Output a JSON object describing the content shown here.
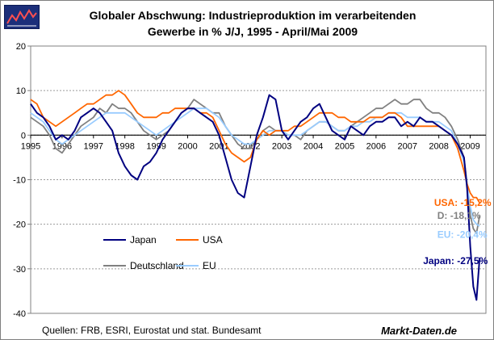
{
  "chart_data": {
    "type": "line",
    "title_line1": "Globaler Abschwung: Industrieproduktion im verarbeitenden",
    "title_line2": "Gewerbe in % J/J, 1995 -  April/Mai 2009",
    "xlabel": "",
    "ylabel": "",
    "x_ticks": [
      "1995",
      "1996",
      "1997",
      "1998",
      "1999",
      "2000",
      "2001",
      "2002",
      "2003",
      "2004",
      "2005",
      "2006",
      "2007",
      "2008",
      "2009"
    ],
    "xlim": [
      1995.0,
      2009.5
    ],
    "ylim": [
      -40,
      20
    ],
    "y_ticks": [
      -40,
      -30,
      -20,
      -10,
      0,
      10,
      20
    ],
    "grid": true,
    "legend_position": "center-left",
    "series": [
      {
        "name": "Japan",
        "color": "#000080",
        "x": [
          1995.0,
          1995.2,
          1995.4,
          1995.6,
          1995.8,
          1996.0,
          1996.2,
          1996.4,
          1996.6,
          1996.8,
          1997.0,
          1997.2,
          1997.4,
          1997.6,
          1997.8,
          1998.0,
          1998.2,
          1998.4,
          1998.6,
          1998.8,
          1999.0,
          1999.2,
          1999.4,
          1999.6,
          1999.8,
          2000.0,
          2000.2,
          2000.4,
          2000.6,
          2000.8,
          2001.0,
          2001.2,
          2001.4,
          2001.6,
          2001.8,
          2002.0,
          2002.2,
          2002.4,
          2002.6,
          2002.8,
          2003.0,
          2003.2,
          2003.4,
          2003.6,
          2003.8,
          2004.0,
          2004.2,
          2004.4,
          2004.6,
          2004.8,
          2005.0,
          2005.2,
          2005.4,
          2005.6,
          2005.8,
          2006.0,
          2006.2,
          2006.4,
          2006.6,
          2006.8,
          2007.0,
          2007.2,
          2007.4,
          2007.6,
          2007.8,
          2008.0,
          2008.2,
          2008.4,
          2008.6,
          2008.8,
          2008.9,
          2009.0,
          2009.1,
          2009.2,
          2009.3
        ],
        "y": [
          7,
          5,
          4,
          2,
          -1,
          0,
          -1,
          1,
          4,
          5,
          6,
          5,
          3,
          1,
          -4,
          -7,
          -9,
          -10,
          -7,
          -6,
          -4,
          -1,
          1,
          3,
          5,
          6,
          6,
          5,
          4,
          3,
          0,
          -5,
          -10,
          -13,
          -14,
          -7,
          0,
          4,
          9,
          8,
          1,
          -1,
          1,
          3,
          4,
          6,
          7,
          4,
          1,
          0,
          -1,
          2,
          1,
          0,
          2,
          3,
          3,
          4,
          4,
          2,
          3,
          2,
          4,
          3,
          3,
          2,
          1,
          0,
          -2,
          -5,
          -12,
          -25,
          -34,
          -37,
          -27.5
        ]
      },
      {
        "name": "USA",
        "color": "#ff6600",
        "x": [
          1995.0,
          1995.2,
          1995.4,
          1995.6,
          1995.8,
          1996.0,
          1996.2,
          1996.4,
          1996.6,
          1996.8,
          1997.0,
          1997.2,
          1997.4,
          1997.6,
          1997.8,
          1998.0,
          1998.2,
          1998.4,
          1998.6,
          1998.8,
          1999.0,
          1999.2,
          1999.4,
          1999.6,
          1999.8,
          2000.0,
          2000.2,
          2000.4,
          2000.6,
          2000.8,
          2001.0,
          2001.2,
          2001.4,
          2001.6,
          2001.8,
          2002.0,
          2002.2,
          2002.4,
          2002.6,
          2002.8,
          2003.0,
          2003.2,
          2003.4,
          2003.6,
          2003.8,
          2004.0,
          2004.2,
          2004.4,
          2004.6,
          2004.8,
          2005.0,
          2005.2,
          2005.4,
          2005.6,
          2005.8,
          2006.0,
          2006.2,
          2006.4,
          2006.6,
          2006.8,
          2007.0,
          2007.2,
          2007.4,
          2007.6,
          2007.8,
          2008.0,
          2008.2,
          2008.4,
          2008.6,
          2008.8,
          2008.9,
          2009.0,
          2009.1,
          2009.2,
          2009.3
        ],
        "y": [
          8,
          7,
          4,
          3,
          2,
          3,
          4,
          5,
          6,
          7,
          7,
          8,
          9,
          9,
          10,
          9,
          7,
          5,
          4,
          4,
          4,
          5,
          5,
          6,
          6,
          6,
          6,
          5,
          5,
          4,
          1,
          -2,
          -4,
          -5,
          -6,
          -5,
          -1,
          1,
          0,
          1,
          1,
          1,
          2,
          2,
          3,
          4,
          5,
          5,
          5,
          4,
          4,
          3,
          3,
          3,
          4,
          4,
          4,
          5,
          5,
          4,
          2,
          2,
          2,
          2,
          2,
          2,
          1,
          0,
          -3,
          -8,
          -11,
          -13,
          -14,
          -14,
          -15.2
        ]
      },
      {
        "name": "Deutschland",
        "color": "#808080",
        "x": [
          1995.0,
          1995.2,
          1995.4,
          1995.6,
          1995.8,
          1996.0,
          1996.2,
          1996.4,
          1996.6,
          1996.8,
          1997.0,
          1997.2,
          1997.4,
          1997.6,
          1997.8,
          1998.0,
          1998.2,
          1998.4,
          1998.6,
          1998.8,
          1999.0,
          1999.2,
          1999.4,
          1999.6,
          1999.8,
          2000.0,
          2000.2,
          2000.4,
          2000.6,
          2000.8,
          2001.0,
          2001.2,
          2001.4,
          2001.6,
          2001.8,
          2002.0,
          2002.2,
          2002.4,
          2002.6,
          2002.8,
          2003.0,
          2003.2,
          2003.4,
          2003.6,
          2003.8,
          2004.0,
          2004.2,
          2004.4,
          2004.6,
          2004.8,
          2005.0,
          2005.2,
          2005.4,
          2005.6,
          2005.8,
          2006.0,
          2006.2,
          2006.4,
          2006.6,
          2006.8,
          2007.0,
          2007.2,
          2007.4,
          2007.6,
          2007.8,
          2008.0,
          2008.2,
          2008.4,
          2008.6,
          2008.8,
          2008.9,
          2009.0,
          2009.1,
          2009.2,
          2009.3
        ],
        "y": [
          4,
          3,
          2,
          0,
          -3,
          -4,
          -2,
          0,
          2,
          3,
          4,
          6,
          5,
          7,
          6,
          6,
          5,
          3,
          1,
          0,
          -1,
          0,
          1,
          3,
          5,
          6,
          8,
          7,
          6,
          5,
          5,
          2,
          0,
          -2,
          -3,
          -3,
          -1,
          1,
          2,
          1,
          1,
          0,
          0,
          -1,
          1,
          2,
          3,
          3,
          2,
          1,
          1,
          2,
          3,
          4,
          5,
          6,
          6,
          7,
          8,
          7,
          7,
          8,
          8,
          6,
          5,
          5,
          4,
          2,
          -1,
          -5,
          -11,
          -18,
          -21,
          -22,
          -18.1
        ]
      },
      {
        "name": "EU",
        "color": "#99ccff",
        "x": [
          1995.0,
          1995.2,
          1995.4,
          1995.6,
          1995.8,
          1996.0,
          1996.2,
          1996.4,
          1996.6,
          1996.8,
          1997.0,
          1997.2,
          1997.4,
          1997.6,
          1997.8,
          1998.0,
          1998.2,
          1998.4,
          1998.6,
          1998.8,
          1999.0,
          1999.2,
          1999.4,
          1999.6,
          1999.8,
          2000.0,
          2000.2,
          2000.4,
          2000.6,
          2000.8,
          2001.0,
          2001.2,
          2001.4,
          2001.6,
          2001.8,
          2002.0,
          2002.2,
          2002.4,
          2002.6,
          2002.8,
          2003.0,
          2003.2,
          2003.4,
          2003.6,
          2003.8,
          2004.0,
          2004.2,
          2004.4,
          2004.6,
          2004.8,
          2005.0,
          2005.2,
          2005.4,
          2005.6,
          2005.8,
          2006.0,
          2006.2,
          2006.4,
          2006.6,
          2006.8,
          2007.0,
          2007.2,
          2007.4,
          2007.6,
          2007.8,
          2008.0,
          2008.2,
          2008.4,
          2008.6,
          2008.8,
          2008.9,
          2009.0,
          2009.1,
          2009.2,
          2009.3
        ],
        "y": [
          5,
          4,
          3,
          1,
          -1,
          -2,
          -1,
          0,
          1,
          2,
          3,
          4,
          5,
          5,
          5,
          5,
          4,
          3,
          2,
          1,
          0,
          1,
          2,
          3,
          4,
          5,
          6,
          6,
          6,
          5,
          4,
          2,
          0,
          -1,
          -2,
          -2,
          -1,
          0,
          1,
          1,
          1,
          0,
          0,
          0,
          1,
          2,
          3,
          3,
          2,
          1,
          1,
          2,
          2,
          3,
          3,
          4,
          4,
          5,
          5,
          5,
          4,
          4,
          4,
          3,
          3,
          3,
          2,
          1,
          -2,
          -6,
          -11,
          -16,
          -19,
          -20,
          -20.4
        ]
      }
    ],
    "annotations": [
      {
        "text": "USA: -15,2%",
        "color": "#ff6600",
        "x": 2007.85,
        "y": -15.2
      },
      {
        "text": "D: -18,1%",
        "color": "#808080",
        "x": 2007.95,
        "y": -18.1
      },
      {
        "text": "EU: -20,4%",
        "color": "#99ccff",
        "x": 2007.95,
        "y": -22.3
      },
      {
        "text": "Japan: -27,5%",
        "color": "#000080",
        "x": 2007.5,
        "y": -28.2
      }
    ]
  },
  "footer": {
    "source": "Quellen: FRB, ESRI, Eurostat und stat. Bundesamt",
    "brand": "Markt-Daten.de"
  },
  "logo_icon": "chart-logo-icon"
}
